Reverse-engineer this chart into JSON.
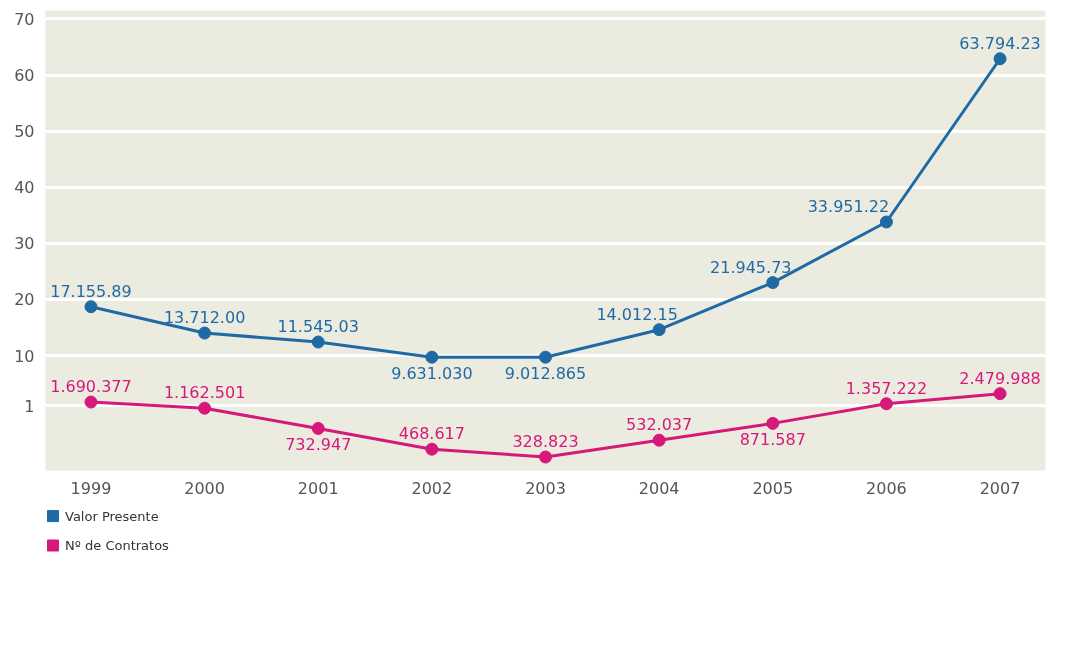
{
  "chart_data": {
    "type": "line",
    "categories": [
      "1999",
      "2000",
      "2001",
      "2002",
      "2003",
      "2004",
      "2005",
      "2006",
      "2007"
    ],
    "series": [
      {
        "name": "Valor Presente",
        "color": "#1f6aa5",
        "values": [
          18.7,
          14.0,
          12.4,
          9.7,
          9.7,
          14.6,
          23.0,
          33.8,
          62.9
        ]
      },
      {
        "name": "Nº de Contratos",
        "color": "#d6187a",
        "values": [
          1.7,
          0.6,
          -3.0,
          -6.7,
          -8.1,
          -5.1,
          -2.1,
          1.4,
          3.2
        ]
      }
    ],
    "annotations": [
      {
        "text": "17.155.89",
        "x": "1999",
        "y": 18.7
      },
      {
        "text": "13.712.00",
        "x": "2000",
        "y": 14.0
      },
      {
        "text": "11.545.03",
        "x": "2001",
        "y": 12.4
      },
      {
        "text": "9.631.030",
        "x": "2002",
        "y": 9.7
      },
      {
        "text": "9.012.865",
        "x": "2003",
        "y": 9.7
      },
      {
        "text": "14.012.15",
        "x": "2004",
        "y": 14.6
      },
      {
        "text": "21.945.73",
        "x": "2005",
        "y": 23.0
      },
      {
        "text": "33.951.22",
        "x": "2006",
        "y": 33.8
      },
      {
        "text": "63.794.23",
        "x": "2007",
        "y": 62.9
      },
      {
        "text": "1.690.377",
        "x": "1999",
        "y": 1.7
      },
      {
        "text": "1.162.501",
        "x": "2000",
        "y": 0.6
      },
      {
        "text": "732.947",
        "x": "2001",
        "y": -3.0
      },
      {
        "text": "468.617",
        "x": "2002",
        "y": -6.7
      },
      {
        "text": "328.823",
        "x": "2003",
        "y": -8.1
      },
      {
        "text": "532.037",
        "x": "2004",
        "y": -5.1
      },
      {
        "text": "871.587",
        "x": "2005",
        "y": -2.1
      },
      {
        "text": "1.357.222",
        "x": "2006",
        "y": 1.4
      },
      {
        "text": "2.479.988",
        "x": "2007",
        "y": 3.2
      }
    ],
    "ylim": [
      -10.5,
      71.5
    ],
    "yticks": [
      1,
      10,
      20,
      30,
      40,
      50,
      60,
      70
    ],
    "grid": "y",
    "marker": "circle",
    "line_style": "solid",
    "legend": "bottom"
  }
}
